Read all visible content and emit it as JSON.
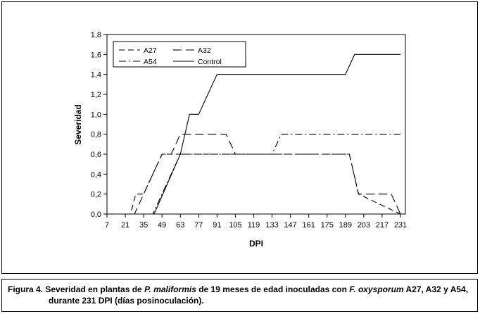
{
  "chart_data": {
    "type": "line",
    "xlabel": "DPI",
    "ylabel": "Severidad",
    "xlim": [
      7,
      231
    ],
    "ylim": [
      0,
      1.8
    ],
    "grid": false,
    "legend_position": "top-left",
    "x_ticks": [
      7,
      21,
      35,
      49,
      63,
      77,
      91,
      105,
      119,
      133,
      147,
      161,
      175,
      189,
      203,
      217,
      231
    ],
    "y_ticks": [
      "0,0",
      "0,2",
      "0,4",
      "0,6",
      "0,8",
      "1,0",
      "1,2",
      "1,4",
      "1,6",
      "1,8"
    ],
    "series": [
      {
        "name": "A27",
        "dash": "8,5",
        "x": [
          7,
          25,
          29,
          35,
          42,
          49,
          56,
          63,
          192,
          199,
          231
        ],
        "y": [
          0,
          0,
          0.2,
          0.2,
          0.4,
          0.6,
          0.6,
          0.6,
          0.6,
          0.2,
          0
        ]
      },
      {
        "name": "A32",
        "dash": "12,6",
        "x": [
          7,
          28,
          42,
          49,
          56,
          63,
          70,
          98,
          105,
          119,
          133,
          192,
          199,
          224,
          231
        ],
        "y": [
          0,
          0,
          0.4,
          0.6,
          0.6,
          0.8,
          0.8,
          0.8,
          0.6,
          0.6,
          0.6,
          0.6,
          0.2,
          0.2,
          0
        ]
      },
      {
        "name": "A54",
        "dash": "10,4,2,4",
        "x": [
          7,
          42,
          49,
          56,
          63,
          98,
          105,
          133,
          140,
          147,
          231
        ],
        "y": [
          0,
          0,
          0.2,
          0.4,
          0.6,
          0.6,
          0.6,
          0.6,
          0.8,
          0.8,
          0.8
        ]
      },
      {
        "name": "Control",
        "dash": "",
        "x": [
          7,
          43,
          63,
          70,
          77,
          84,
          91,
          189,
          196,
          203,
          231
        ],
        "y": [
          0,
          0,
          0.6,
          1.0,
          1.0,
          1.2,
          1.4,
          1.4,
          1.6,
          1.6,
          1.6
        ]
      }
    ]
  },
  "caption": {
    "prefix": "Figura 4. Severidad en plantas de ",
    "species1": "P. maliformis",
    "middle": " de 19 meses de edad inoculadas con ",
    "species2": "F. oxysporum",
    "suffix": " A27, A32 y A54,",
    "line2": "durante 231 DPI (días posinoculación)."
  }
}
